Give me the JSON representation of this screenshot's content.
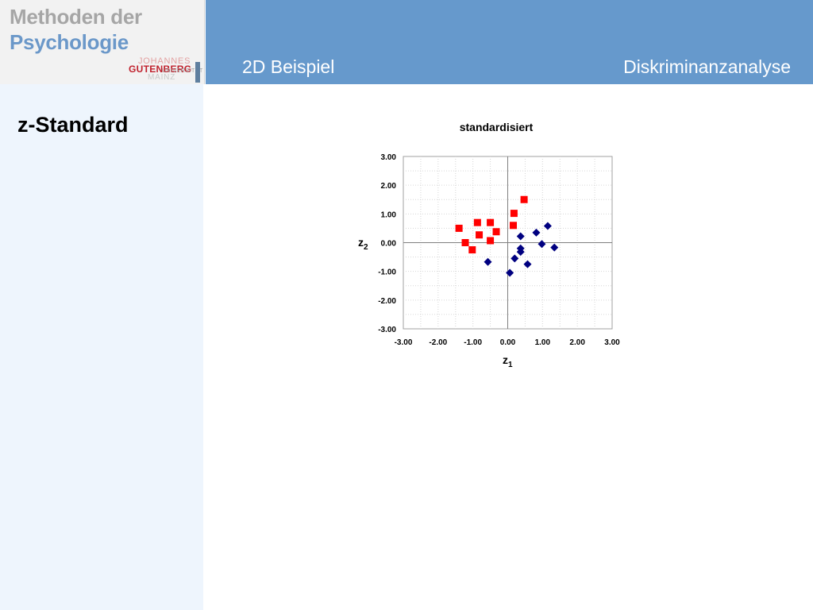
{
  "branding": {
    "line1": "Methoden der",
    "line2": "Psychologie",
    "uni_johannes": "JOHANNES",
    "uni_gutenberg": "GUTENBERG",
    "uni_universitaet": "UNIVERSITÄT",
    "uni_mainz": "MAINZ"
  },
  "header": {
    "title": "2D Beispiel",
    "topic": "Diskriminanzanalyse"
  },
  "sidebar": {
    "section_title": "z-Standard"
  },
  "colors": {
    "header": "#6699cc",
    "sidebar": "#eef5fd",
    "group_red": "#ff0000",
    "group_blue": "#000080"
  },
  "chart_data": {
    "type": "scatter",
    "title": "standardisiert",
    "xlabel": "z",
    "xlabel_sub": "1",
    "ylabel": "z",
    "ylabel_sub": "2",
    "xlim": [
      -3,
      3
    ],
    "ylim": [
      -3,
      3
    ],
    "xticks": [
      "-3.00",
      "-2.00",
      "-1.00",
      "0.00",
      "1.00",
      "2.00",
      "3.00"
    ],
    "yticks": [
      "3.00",
      "2.00",
      "1.00",
      "0.00",
      "-1.00",
      "-2.00",
      "-3.00"
    ],
    "grid": true,
    "series": [
      {
        "marker": "square",
        "color": "#ff0000",
        "points": [
          [
            -1.4,
            0.5
          ],
          [
            -1.22,
            0.0
          ],
          [
            -1.02,
            -0.25
          ],
          [
            -0.87,
            0.7
          ],
          [
            -0.82,
            0.27
          ],
          [
            -0.5,
            0.7
          ],
          [
            -0.5,
            0.07
          ],
          [
            -0.33,
            0.38
          ],
          [
            0.16,
            0.6
          ],
          [
            0.18,
            1.02
          ],
          [
            0.47,
            1.5
          ]
        ]
      },
      {
        "marker": "diamond",
        "color": "#000080",
        "points": [
          [
            -0.57,
            -0.67
          ],
          [
            0.06,
            -1.05
          ],
          [
            0.2,
            -0.55
          ],
          [
            0.37,
            0.22
          ],
          [
            0.37,
            -0.2
          ],
          [
            0.37,
            -0.32
          ],
          [
            0.57,
            -0.75
          ],
          [
            0.82,
            0.35
          ],
          [
            0.98,
            -0.05
          ],
          [
            1.15,
            0.58
          ],
          [
            1.34,
            -0.17
          ]
        ]
      }
    ]
  }
}
